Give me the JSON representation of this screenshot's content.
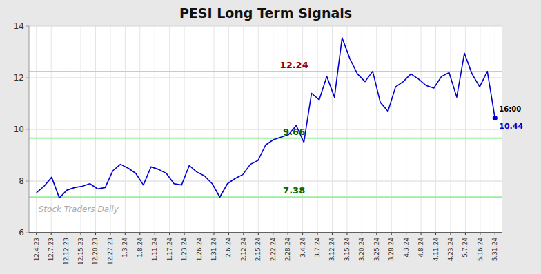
{
  "chart_data": {
    "type": "line",
    "title": "PESI Long Term Signals",
    "watermark": "Stock Traders Daily",
    "background_color": "#e8e8e8",
    "plot_background_color": "#ffffff",
    "grid": true,
    "xlim": [
      -0.5,
      31.5
    ],
    "xticks": [
      {
        "value": 0,
        "label": "12.4.23"
      },
      {
        "value": 1,
        "label": "12.7.23"
      },
      {
        "value": 2,
        "label": "12.12.23"
      },
      {
        "value": 3,
        "label": "12.15.23"
      },
      {
        "value": 4,
        "label": "12.20.23"
      },
      {
        "value": 5,
        "label": "12.27.23"
      },
      {
        "value": 6,
        "label": "1.3.24"
      },
      {
        "value": 7,
        "label": "1.8.24"
      },
      {
        "value": 8,
        "label": "1.11.24"
      },
      {
        "value": 9,
        "label": "1.17.24"
      },
      {
        "value": 10,
        "label": "1.23.24"
      },
      {
        "value": 11,
        "label": "1.26.24"
      },
      {
        "value": 12,
        "label": "1.31.24"
      },
      {
        "value": 13,
        "label": "2.6.24"
      },
      {
        "value": 14,
        "label": "2.12.24"
      },
      {
        "value": 15,
        "label": "2.15.24"
      },
      {
        "value": 16,
        "label": "2.22.24"
      },
      {
        "value": 17,
        "label": "2.28.24"
      },
      {
        "value": 18,
        "label": "3.4.24"
      },
      {
        "value": 19,
        "label": "3.7.24"
      },
      {
        "value": 20,
        "label": "3.12.24"
      },
      {
        "value": 21,
        "label": "3.15.24"
      },
      {
        "value": 22,
        "label": "3.20.24"
      },
      {
        "value": 23,
        "label": "3.25.24"
      },
      {
        "value": 24,
        "label": "3.28.24"
      },
      {
        "value": 25,
        "label": "4.3.24"
      },
      {
        "value": 26,
        "label": "4.8.24"
      },
      {
        "value": 27,
        "label": "4.11.24"
      },
      {
        "value": 28,
        "label": "4.23.24"
      },
      {
        "value": 29,
        "label": "5.7.24"
      },
      {
        "value": 30,
        "label": "5.16.24"
      },
      {
        "value": 31,
        "label": "5.31.24"
      }
    ],
    "ylim": [
      6,
      14
    ],
    "yticks": [
      6,
      8,
      10,
      12,
      14
    ],
    "series": [
      {
        "color": "#0000cc",
        "x": [
          0,
          0.516667,
          1.033333,
          1.55,
          2.066667,
          2.583333,
          3.1,
          3.616667,
          4.133333,
          4.65,
          5.166667,
          5.683333,
          6.2,
          6.716667,
          7.233333,
          7.75,
          8.266667,
          8.783333,
          9.3,
          9.816667,
          10.333333,
          10.85,
          11.366667,
          11.883333,
          12.4,
          12.916667,
          13.433333,
          13.95,
          14.466667,
          14.983333,
          15.5,
          16.016667,
          16.533333,
          17.05,
          17.566667,
          18.083333,
          18.6,
          19.116667,
          19.633333,
          20.15,
          20.666667,
          21.183333,
          21.7,
          22.216667,
          22.733333,
          23.25,
          23.766667,
          24.283333,
          24.8,
          25.316667,
          25.833333,
          26.35,
          26.866667,
          27.383333,
          27.9,
          28.416667,
          28.933333,
          29.45,
          29.966667,
          30.483333,
          31
        ],
        "values": [
          7.55,
          7.8,
          8.15,
          7.35,
          7.65,
          7.75,
          7.8,
          7.9,
          7.7,
          7.75,
          8.4,
          8.65,
          8.5,
          8.3,
          7.85,
          8.55,
          8.45,
          8.3,
          7.9,
          7.85,
          8.6,
          8.35,
          8.2,
          7.9,
          7.38,
          7.9,
          8.1,
          8.25,
          8.65,
          8.8,
          9.4,
          9.6,
          9.7,
          9.8,
          10.15,
          9.5,
          11.4,
          11.15,
          12.05,
          11.25,
          13.55,
          12.75,
          12.15,
          11.85,
          12.25,
          11.05,
          10.7,
          11.65,
          11.85,
          12.15,
          11.95,
          11.7,
          11.6,
          12.05,
          12.2,
          11.25,
          12.95,
          12.15,
          11.65,
          12.25,
          10.44
        ]
      }
    ],
    "reference_lines": [
      {
        "value": 12.24,
        "label": "12.24",
        "color": "#ffb3b3",
        "label_color": "#990000"
      },
      {
        "value": 9.66,
        "label": "9.66",
        "color": "#99ee99",
        "label_color": "#006600"
      },
      {
        "value": 7.38,
        "label": "7.38",
        "color": "#99ee99",
        "label_color": "#006600"
      }
    ],
    "annotations": [
      {
        "text": "16:00",
        "color": "#000000"
      },
      {
        "text": "10.44",
        "color": "#0000cc"
      }
    ]
  }
}
